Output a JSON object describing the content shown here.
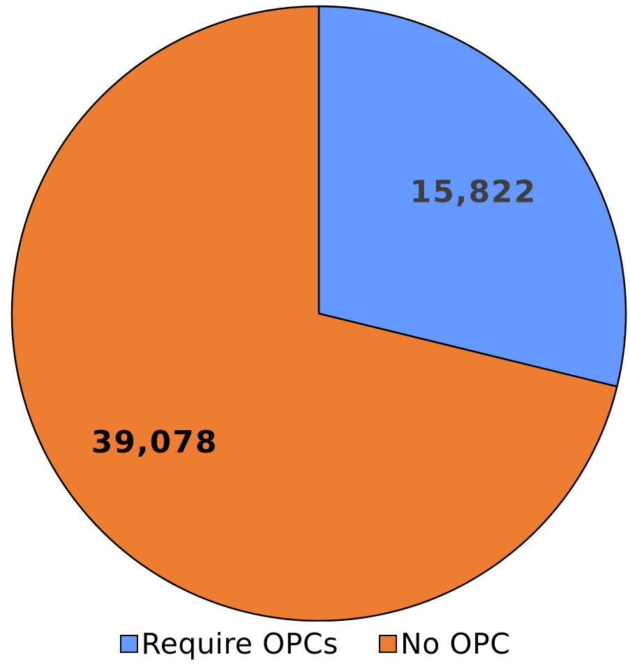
{
  "chart_data": {
    "type": "pie",
    "title": "",
    "slices": [
      {
        "label": "Require OPCs",
        "value": 15822,
        "display": "15,822",
        "color": "#6699ff",
        "label_color": "#3f3f3f"
      },
      {
        "label": "No OPC",
        "value": 39078,
        "display": "39,078",
        "color": "#ed7d31",
        "label_color": "#000000"
      }
    ],
    "start_angle": "12 o'clock",
    "direction": "clockwise",
    "legend_position": "bottom"
  }
}
